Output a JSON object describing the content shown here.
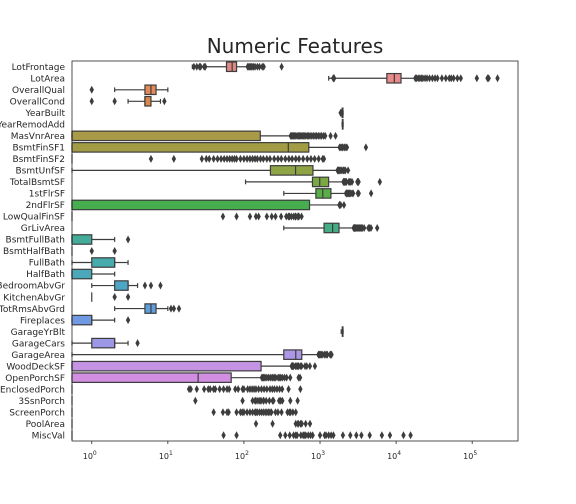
{
  "chart_data": {
    "type": "box",
    "orientation": "horizontal",
    "title": "Numeric Features",
    "xscale": "log",
    "xlim": [
      0.55,
      400000
    ],
    "xticks": [
      {
        "value": 1,
        "base": "10",
        "exp": "0"
      },
      {
        "value": 10,
        "base": "10",
        "exp": "1"
      },
      {
        "value": 100,
        "base": "10",
        "exp": "2"
      },
      {
        "value": 1000,
        "base": "10",
        "exp": "3"
      },
      {
        "value": 10000,
        "base": "10",
        "exp": "4"
      },
      {
        "value": 100000,
        "base": "10",
        "exp": "5"
      }
    ],
    "grid": false,
    "whisker_color": "#3d3d3d",
    "features": [
      {
        "name": "LotFrontage",
        "color": "#dd8a83",
        "box": [
          21,
          59,
          70,
          80,
          111
        ],
        "outliers": [
          22,
          24,
          26,
          27,
          30,
          31,
          112,
          116,
          120,
          124,
          128,
          134,
          140,
          150,
          160,
          174,
          182,
          313
        ]
      },
      {
        "name": "LotArea",
        "color": "#e88a8a",
        "box": [
          1300,
          7554,
          9478,
          11602,
          17673
        ],
        "outliers": [
          1491,
          1526,
          1533,
          17900,
          18500,
          19500,
          20500,
          21500,
          22500,
          24000,
          25500,
          27500,
          30000,
          32500,
          35000,
          40000,
          45000,
          50000,
          53000,
          57000,
          63887,
          70761,
          115149,
          159000,
          164660,
          215245
        ]
      },
      {
        "name": "OverallQual",
        "color": "#e08a5a",
        "box": [
          2,
          5,
          6,
          7,
          10
        ],
        "outliers": [
          1
        ]
      },
      {
        "name": "OverallCond",
        "color": "#d9894c",
        "box": [
          3,
          5,
          5,
          6,
          8
        ],
        "outliers": [
          1,
          2,
          9
        ]
      },
      {
        "name": "YearBuilt",
        "color": "#c99852",
        "box": [
          1885,
          1954,
          1973,
          2001,
          2010
        ],
        "outliers": [
          1872,
          1875,
          1880,
          1882
        ]
      },
      {
        "name": "YearRemodAdd",
        "color": "#c29a4f",
        "box": [
          1950,
          1967,
          1994,
          2004,
          2010
        ],
        "outliers": []
      },
      {
        "name": "MasVnrArea",
        "color": "#a89a47",
        "box": [
          0.55,
          0.55,
          0.55,
          164,
          410
        ],
        "outliers": [
          412,
          420,
          432,
          448,
          460,
          480,
          500,
          520,
          540,
          560,
          580,
          600,
          620,
          650,
          680,
          710,
          740,
          780,
          820,
          860,
          900,
          950,
          1000,
          1050,
          1115,
          1170,
          1378,
          1600
        ]
      },
      {
        "name": "BsmtFinSF1",
        "color": "#a29d45",
        "box": [
          0.55,
          0.55,
          383,
          712,
          1780
        ],
        "outliers": [
          1810,
          1880,
          1950,
          2000,
          2096,
          2188,
          2260,
          4010
        ]
      },
      {
        "name": "BsmtFinSF2",
        "color": "#97a042",
        "box": [
          0.55,
          0.55,
          0.55,
          0.55,
          0.55
        ],
        "outliers": [
          6,
          12,
          28,
          32,
          35,
          40,
          45,
          50,
          55,
          60,
          65,
          70,
          75,
          80,
          90,
          100,
          110,
          120,
          130,
          140,
          150,
          165,
          180,
          200,
          220,
          250,
          280,
          310,
          350,
          390,
          430,
          480,
          530,
          600,
          680,
          760,
          850,
          960,
          1085,
          1127
        ]
      },
      {
        "name": "BsmtUnfSF",
        "color": "#8fa444",
        "box": [
          0.55,
          223,
          477,
          808,
          1680
        ],
        "outliers": [
          1700,
          1720,
          1753,
          1774,
          1797,
          1868,
          1905,
          2002,
          2046,
          2121,
          2153,
          2336
        ]
      },
      {
        "name": "TotalBsmtSF",
        "color": "#7aa944",
        "box": [
          105,
          796,
          991,
          1298,
          2000
        ],
        "outliers": [
          2033,
          2052,
          2076,
          2110,
          2136,
          2158,
          2216,
          2220,
          2392,
          2444,
          2524,
          2633,
          3094,
          3138,
          3200,
          3206,
          6110
        ]
      },
      {
        "name": "1stFlrSF",
        "color": "#5aae48",
        "box": [
          334,
          882,
          1087,
          1391,
          2158
        ],
        "outliers": [
          2200,
          2240,
          2260,
          2290,
          2360,
          2411,
          2444,
          2515,
          2633,
          2726,
          3138,
          3228,
          4692
        ]
      },
      {
        "name": "2ndFlrSF",
        "color": "#46ae4f",
        "box": [
          0.55,
          0.55,
          0.55,
          728,
          1818
        ],
        "outliers": [
          1796,
          1818,
          1872,
          2065
        ]
      },
      {
        "name": "LowQualFinSF",
        "color": "#44ad6c",
        "box": [
          0.55,
          0.55,
          0.55,
          0.55,
          0.55
        ],
        "outliers": [
          53,
          80,
          120,
          144,
          156,
          200,
          232,
          260,
          308,
          360,
          384,
          392,
          397,
          420,
          450,
          473,
          479,
          481,
          513,
          514,
          515,
          528,
          572
        ]
      },
      {
        "name": "GrLivArea",
        "color": "#45ac86",
        "box": [
          334,
          1130,
          1464,
          1777,
          2730
        ],
        "outliers": [
          2770,
          2800,
          2830,
          2880,
          2950,
          3000,
          3100,
          3200,
          3300,
          3400,
          3500,
          3600,
          3800,
          4316,
          4476,
          4676,
          5642
        ]
      },
      {
        "name": "BsmtFullBath",
        "color": "#44ab98",
        "box": [
          0.55,
          0.55,
          0.55,
          1,
          2
        ],
        "outliers": [
          3
        ]
      },
      {
        "name": "BsmtHalfBath",
        "color": "#46aaa3",
        "box": [
          0.55,
          0.55,
          0.55,
          0.55,
          0.55
        ],
        "outliers": [
          1,
          2
        ]
      },
      {
        "name": "FullBath",
        "color": "#47aaad",
        "box": [
          0.55,
          1,
          2,
          2,
          3
        ],
        "outliers": []
      },
      {
        "name": "HalfBath",
        "color": "#4aa8b8",
        "box": [
          0.55,
          0.55,
          0.55,
          1,
          2
        ],
        "outliers": []
      },
      {
        "name": "BedroomAbvGr",
        "color": "#4ea6c6",
        "box": [
          1,
          2,
          3,
          3,
          4
        ],
        "outliers": [
          5,
          6,
          8
        ]
      },
      {
        "name": "KitchenAbvGr",
        "color": "#56a2d0",
        "box": [
          1,
          1,
          1,
          1,
          1
        ],
        "outliers": [
          2,
          3
        ]
      },
      {
        "name": "TotRmsAbvGrd",
        "color": "#5f9edb",
        "box": [
          2,
          5,
          6,
          7,
          10
        ],
        "outliers": [
          11,
          12,
          14
        ]
      },
      {
        "name": "Fireplaces",
        "color": "#6f9ae3",
        "box": [
          0.55,
          0.55,
          1,
          1,
          2
        ],
        "outliers": [
          3
        ]
      },
      {
        "name": "GarageYrBlt",
        "color": "#8a9ae8",
        "box": [
          1900,
          1961,
          1980,
          2002,
          2010
        ],
        "outliers": []
      },
      {
        "name": "GarageCars",
        "color": "#9c98e6",
        "box": [
          0.55,
          1,
          2,
          2,
          3
        ],
        "outliers": [
          4
        ]
      },
      {
        "name": "GarageArea",
        "color": "#ac97e6",
        "box": [
          0.55,
          334,
          480,
          576,
          938
        ],
        "outliers": [
          954,
          968,
          988,
          1014,
          1043,
          1069,
          1134,
          1166,
          1220,
          1248,
          1356,
          1390,
          1418
        ]
      },
      {
        "name": "WoodDeckSF",
        "color": "#c593e4",
        "box": [
          0.55,
          0.55,
          0.55,
          168,
          420
        ],
        "outliers": [
          424,
          431,
          436,
          441,
          449,
          476,
          496,
          503,
          517,
          519,
          550,
          574,
          635,
          670,
          736,
          857
        ]
      },
      {
        "name": "OpenPorchSF",
        "color": "#d28fe1",
        "box": [
          0.55,
          0.55,
          25,
          68,
          170
        ],
        "outliers": [
          172,
          175,
          180,
          184,
          190,
          200,
          210,
          222,
          234,
          241,
          252,
          262,
          281,
          291,
          304,
          319,
          341,
          364,
          406,
          523,
          547
        ]
      },
      {
        "name": "EnclosedPorch",
        "color": "#de8edd",
        "box": [
          0.55,
          0.55,
          0.55,
          0.55,
          0.55
        ],
        "outliers": [
          19,
          20,
          24,
          30,
          34,
          36,
          40,
          42,
          48,
          54,
          60,
          64,
          77,
          84,
          96,
          100,
          112,
          120,
          128,
          136,
          144,
          156,
          170,
          184,
          200,
          220,
          236,
          252,
          272,
          294,
          318,
          386,
          552
        ]
      },
      {
        "name": "3SsnPorch",
        "color": "#e28ccf",
        "box": [
          0.55,
          0.55,
          0.55,
          0.55,
          0.55
        ],
        "outliers": [
          23,
          96,
          130,
          140,
          144,
          153,
          162,
          168,
          180,
          182,
          196,
          216,
          238,
          245,
          290,
          304,
          320,
          407,
          508
        ]
      },
      {
        "name": "ScreenPorch",
        "color": "#e68bc0",
        "box": [
          0.55,
          0.55,
          0.55,
          0.55,
          0.55
        ],
        "outliers": [
          40,
          53,
          60,
          63,
          80,
          90,
          95,
          100,
          110,
          120,
          130,
          140,
          144,
          150,
          160,
          170,
          180,
          190,
          200,
          210,
          220,
          230,
          260,
          280,
          312,
          374,
          396,
          410,
          440,
          480
        ]
      },
      {
        "name": "PoolArea",
        "color": "#e98ab1",
        "box": [
          0.55,
          0.55,
          0.55,
          0.55,
          0.55
        ],
        "outliers": [
          144,
          238,
          480,
          512,
          519,
          555,
          576,
          648,
          738
        ]
      },
      {
        "name": "MiscVal",
        "color": "#ea89a3",
        "box": [
          0.55,
          0.55,
          0.55,
          0.55,
          0.55
        ],
        "outliers": [
          54,
          80,
          300,
          350,
          400,
          450,
          480,
          500,
          560,
          600,
          620,
          650,
          700,
          750,
          800,
          1000,
          1150,
          1200,
          1300,
          1400,
          1500,
          2000,
          2500,
          3000,
          3500,
          4500,
          6500,
          8300,
          12500,
          15500
        ]
      }
    ]
  }
}
